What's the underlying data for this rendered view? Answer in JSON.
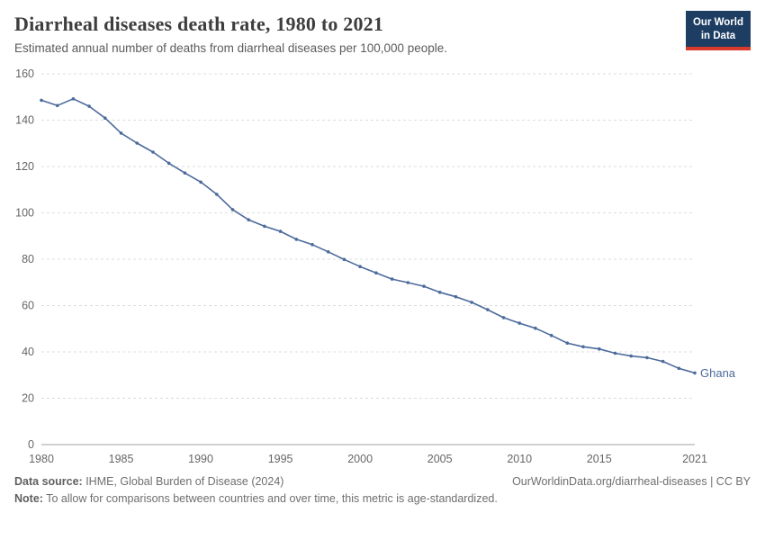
{
  "header": {
    "title": "Diarrheal diseases death rate, 1980 to 2021",
    "subtitle": "Estimated annual number of deaths from diarrheal diseases per 100,000 people.",
    "logo": {
      "line1": "Our World",
      "line2": "in Data"
    }
  },
  "chart_data": {
    "type": "line",
    "title": "Diarrheal diseases death rate, 1980 to 2021",
    "xlabel": "",
    "ylabel": "",
    "xlim": [
      1980,
      2021
    ],
    "ylim": [
      0,
      160
    ],
    "grid": "horizontal-dashed",
    "legend_position": "end-of-line-label",
    "xticks": [
      1980,
      1985,
      1990,
      1995,
      2000,
      2005,
      2010,
      2015,
      2021
    ],
    "yticks": [
      0,
      20,
      40,
      60,
      80,
      100,
      120,
      140,
      160
    ],
    "x": [
      1980,
      1981,
      1982,
      1983,
      1984,
      1985,
      1986,
      1987,
      1988,
      1989,
      1990,
      1991,
      1992,
      1993,
      1994,
      1995,
      1996,
      1997,
      1998,
      1999,
      2000,
      2001,
      2002,
      2003,
      2004,
      2005,
      2006,
      2007,
      2008,
      2009,
      2010,
      2011,
      2012,
      2013,
      2014,
      2015,
      2016,
      2017,
      2018,
      2019,
      2020,
      2021
    ],
    "series": [
      {
        "name": "Ghana",
        "color": "#4C6A9C",
        "values": [
          148.6,
          146.3,
          149.2,
          146.0,
          140.9,
          134.4,
          130.1,
          126.2,
          121.4,
          117.2,
          113.3,
          108.0,
          101.4,
          97.0,
          94.2,
          92.0,
          88.6,
          86.3,
          83.2,
          79.9,
          76.8,
          74.1,
          71.4,
          69.9,
          68.3,
          65.7,
          63.8,
          61.4,
          58.2,
          54.8,
          52.4,
          50.2,
          47.1,
          43.8,
          42.2,
          41.3,
          39.4,
          38.2,
          37.5,
          35.9,
          32.9,
          30.9
        ]
      }
    ]
  },
  "footer": {
    "source_label": "Data source:",
    "source_text": " IHME, Global Burden of Disease (2024)",
    "rights": "OurWorldinData.org/diarrheal-diseases | CC BY",
    "note_label": "Note:",
    "note_text": " To allow for comparisons between countries and over time, this metric is age-standardized."
  },
  "colors": {
    "line": "#4C6A9C",
    "logo_background": "#1d3d63",
    "logo_accent": "#d93a2b",
    "grid": "#dddddd",
    "axis_line": "#a0a0a0",
    "axis_text": "#666666",
    "title_text": "#3d3d3d"
  }
}
